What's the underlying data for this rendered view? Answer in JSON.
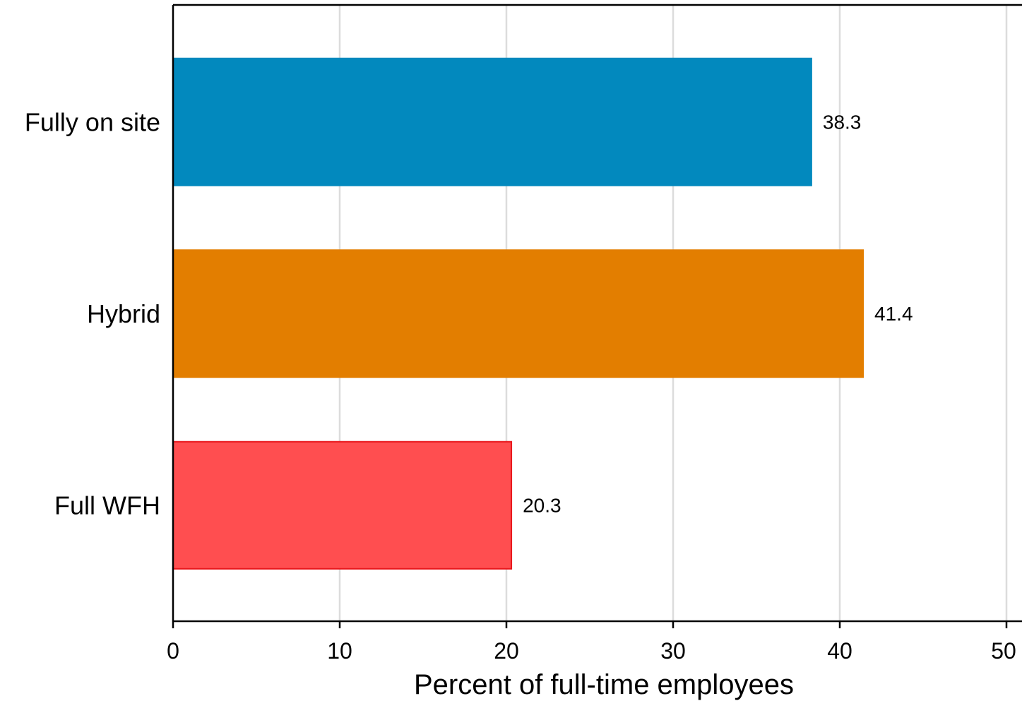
{
  "chart_data": {
    "type": "bar",
    "orientation": "horizontal",
    "categories": [
      "Fully on site",
      "Hybrid",
      "Full WFH"
    ],
    "values": [
      38.3,
      41.4,
      20.3
    ],
    "value_labels": [
      "38.3",
      "41.4",
      "20.3"
    ],
    "colors": [
      "#0289be",
      "#e37e00",
      "#ff4e50"
    ],
    "edge_colors": [
      "#0289be",
      "#e37e00",
      "#e8171c"
    ],
    "xlabel": "Percent of full-time employees",
    "ylabel": "",
    "xlim": [
      0,
      51
    ],
    "xticks": [
      0,
      10,
      20,
      30,
      40,
      50
    ],
    "xtick_labels": [
      "0",
      "10",
      "20",
      "30",
      "40",
      "50"
    ],
    "grid": true,
    "legend": false
  }
}
